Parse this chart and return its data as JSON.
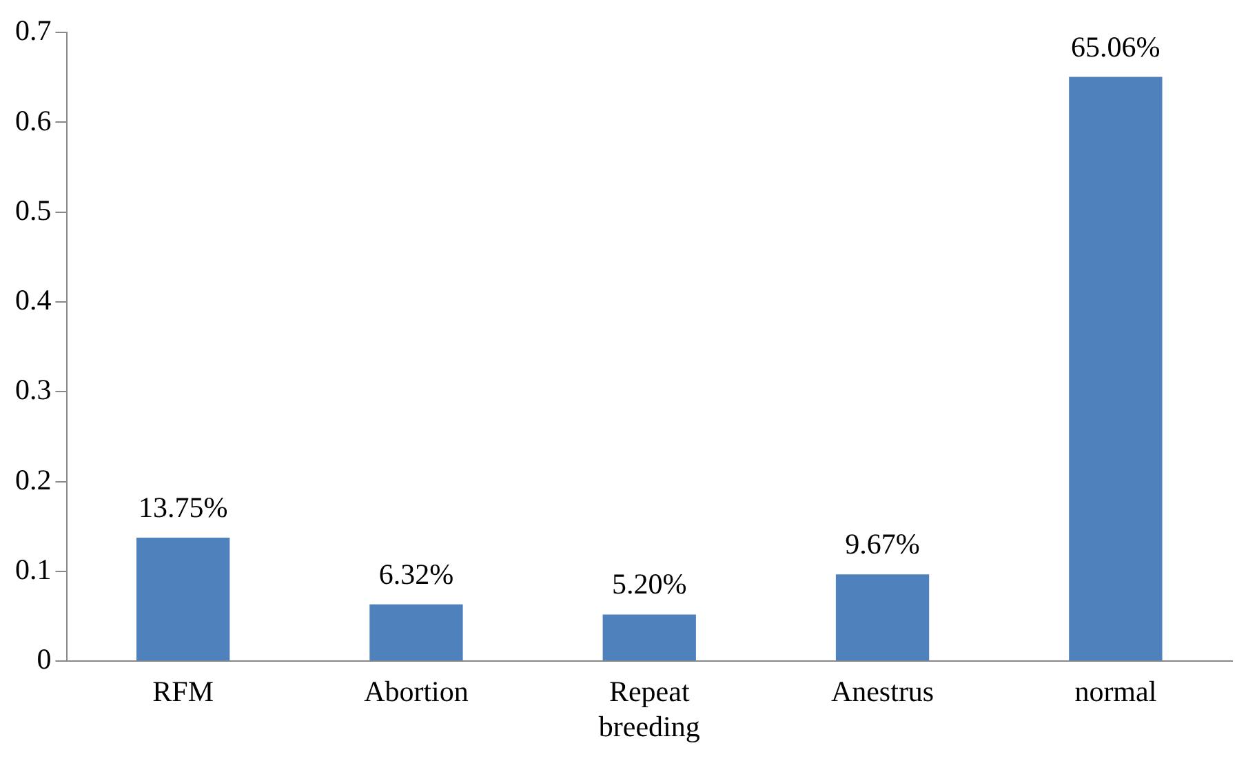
{
  "chart_data": {
    "type": "bar",
    "categories": [
      "RFM",
      "Abortion",
      "Repeat breeding",
      "Anestrus",
      "normal"
    ],
    "values": [
      0.1375,
      0.0632,
      0.052,
      0.0967,
      0.6506
    ],
    "value_labels": [
      "13.75%",
      "6.32%",
      "5.20%",
      "9.67%",
      "65.06%"
    ],
    "color": "#4f81bd",
    "ylim": [
      0,
      0.7
    ],
    "yticks": [
      0,
      0.1,
      0.2,
      0.3,
      0.4,
      0.5,
      0.6,
      0.7
    ],
    "grid": false,
    "legend": false
  }
}
